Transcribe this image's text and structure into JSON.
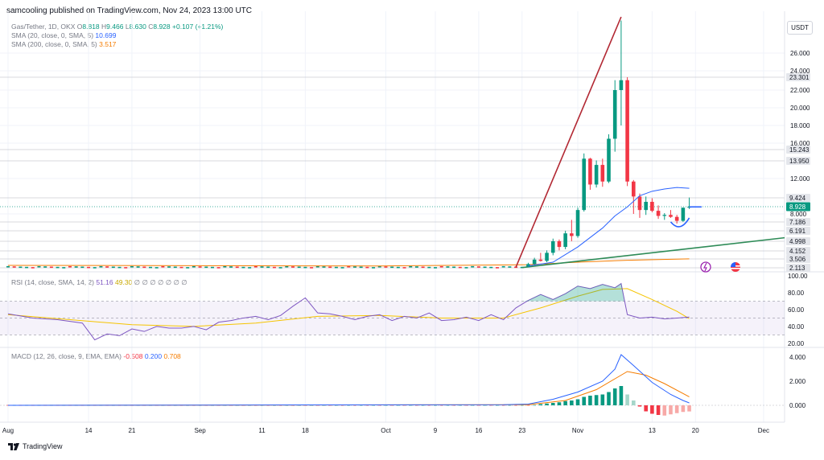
{
  "header": {
    "published": "samcooling published on TradingView.com, Nov 24, 2023 13:00 UTC"
  },
  "legend": {
    "symbol": "Gas/Tether, 1D, OKX",
    "o_label": "O",
    "o": "8.818",
    "h_label": "H",
    "h": "9.466",
    "l_label": "L",
    "l": "8.630",
    "c_label": "C",
    "c": "8.928",
    "change": "+0.107 (+1.21%)",
    "sma20_label": "SMA (20, close, 0, SMA, 5)",
    "sma20_value": "10.699",
    "sma200_label": "SMA (200, close, 0, SMA, 5)",
    "sma200_value": "3.517"
  },
  "rsi_legend": {
    "label": "RSI (14, close, SMA, 14, 2)",
    "v1": "51.16",
    "v2": "49.30",
    "zeros": "∅ ∅ ∅ ∅ ∅ ∅ ∅"
  },
  "macd_legend": {
    "label": "MACD (12, 26, close, 9, EMA, EMA)",
    "v1": "-0.508",
    "v2": "0.200",
    "v3": "0.708"
  },
  "currency": "USDT",
  "footer": {
    "brand": "TradingView"
  },
  "colors": {
    "up": "#089981",
    "down": "#f23645",
    "sma20": "#2962ff",
    "sma200": "#f57c00",
    "rsi": "#7e57c2",
    "rsi_ma": "#f5c400",
    "trend_red": "#b22833",
    "trend_green": "#2e8b57"
  },
  "chart_data": [
    {
      "type": "candlestick",
      "title": "Gas/Tether, 1D, OKX",
      "x_ticks": [
        {
          "label": "Aug",
          "day": 0
        },
        {
          "label": "14",
          "day": 13
        },
        {
          "label": "21",
          "day": 20
        },
        {
          "label": "Sep",
          "day": 31
        },
        {
          "label": "11",
          "day": 41
        },
        {
          "label": "18",
          "day": 48
        },
        {
          "label": "Oct",
          "day": 61
        },
        {
          "label": "9",
          "day": 69
        },
        {
          "label": "16",
          "day": 76
        },
        {
          "label": "23",
          "day": 83
        },
        {
          "label": "Nov",
          "day": 92
        },
        {
          "label": "13",
          "day": 104
        },
        {
          "label": "20",
          "day": 111
        },
        {
          "label": "Dec",
          "day": 122
        }
      ],
      "y_ticks": [
        "26.000",
        "24.000",
        "22.000",
        "20.000",
        "18.000",
        "16.000",
        "12.000",
        "8.000"
      ],
      "price_labels": [
        {
          "value": "23.301",
          "y": 23.301,
          "style": "line"
        },
        {
          "value": "15.243",
          "y": 15.243,
          "style": "line"
        },
        {
          "value": "13.950",
          "y": 13.95,
          "style": "line"
        },
        {
          "value": "9.424",
          "y": 9.424,
          "style": "line"
        },
        {
          "value": "8.928",
          "y": 8.928,
          "style": "current"
        },
        {
          "value": "7.186",
          "y": 7.186,
          "style": "line"
        },
        {
          "value": "6.191",
          "y": 6.191,
          "style": "line"
        },
        {
          "value": "4.998",
          "y": 4.998,
          "style": "line"
        },
        {
          "value": "4.152",
          "y": 4.152,
          "style": "line"
        },
        {
          "value": "3.506",
          "y": 3.506,
          "style": "line"
        },
        {
          "value": "2.113",
          "y": 2.113,
          "style": "line"
        }
      ],
      "ylim": [
        2.0,
        28.0
      ],
      "candles": [
        [
          84,
          2.3,
          2.9,
          2.2,
          2.7
        ],
        [
          85,
          2.7,
          3.6,
          2.6,
          3.4
        ],
        [
          86,
          3.4,
          4.0,
          3.1,
          3.2
        ],
        [
          87,
          3.2,
          4.2,
          3.0,
          4.0
        ],
        [
          88,
          4.0,
          5.3,
          3.8,
          5.0
        ],
        [
          89,
          5.0,
          5.2,
          4.2,
          4.5
        ],
        [
          90,
          4.5,
          6.2,
          4.3,
          5.9
        ],
        [
          91,
          5.9,
          7.4,
          5.0,
          5.6
        ],
        [
          92,
          5.6,
          8.8,
          5.4,
          8.5
        ],
        [
          93,
          8.5,
          14.8,
          8.3,
          14.2
        ],
        [
          94,
          14.2,
          14.3,
          10.5,
          11.2
        ],
        [
          95,
          11.2,
          14.0,
          10.8,
          13.5
        ],
        [
          96,
          13.5,
          14.2,
          10.9,
          11.6
        ],
        [
          97,
          11.6,
          17.0,
          11.4,
          16.5
        ],
        [
          98,
          16.5,
          23.0,
          15.0,
          22.0
        ],
        [
          99,
          22.0,
          27.8,
          18.0,
          23.0
        ],
        [
          100,
          23.0,
          23.3,
          11.0,
          11.6
        ],
        [
          101,
          11.6,
          11.8,
          8.0,
          9.6
        ],
        [
          102,
          9.6,
          10.0,
          7.6,
          8.5
        ],
        [
          103,
          8.5,
          9.6,
          7.9,
          9.2
        ],
        [
          104,
          9.2,
          9.4,
          8.2,
          8.4
        ],
        [
          105,
          8.4,
          9.0,
          7.5,
          7.8
        ],
        [
          106,
          7.8,
          8.1,
          7.4,
          7.9
        ],
        [
          107,
          7.9,
          8.5,
          7.6,
          7.7
        ],
        [
          108,
          7.7,
          7.9,
          7.0,
          7.3
        ],
        [
          109,
          7.3,
          8.8,
          7.2,
          8.8
        ],
        [
          110,
          8.818,
          9.466,
          8.63,
          8.928
        ]
      ],
      "flat_series_start": 0,
      "flat_series_end": 83,
      "flat_level": 2.2,
      "sma20": [
        [
          84,
          2.4
        ],
        [
          88,
          3.0
        ],
        [
          92,
          4.5
        ],
        [
          96,
          6.5
        ],
        [
          98,
          7.8
        ],
        [
          100,
          8.9
        ],
        [
          102,
          9.7
        ],
        [
          104,
          10.3
        ],
        [
          106,
          10.6
        ],
        [
          108,
          10.8
        ],
        [
          110,
          10.699
        ]
      ],
      "sma200": [
        [
          0,
          2.5
        ],
        [
          60,
          2.4
        ],
        [
          84,
          2.6
        ],
        [
          92,
          3.0
        ],
        [
          100,
          3.3
        ],
        [
          110,
          3.517
        ]
      ]
    },
    {
      "type": "line",
      "title": "RSI (14, close, SMA, 14, 2)",
      "y_ticks": [
        "100.00",
        "80.00",
        "60.00",
        "40.00",
        "20.00"
      ],
      "ylim": [
        15,
        105
      ],
      "bands": [
        30,
        70
      ],
      "rsi": [
        [
          0,
          55
        ],
        [
          4,
          50
        ],
        [
          8,
          48
        ],
        [
          12,
          44
        ],
        [
          14,
          24
        ],
        [
          16,
          31
        ],
        [
          18,
          29
        ],
        [
          20,
          37
        ],
        [
          22,
          34
        ],
        [
          24,
          40
        ],
        [
          26,
          38
        ],
        [
          28,
          38
        ],
        [
          30,
          40
        ],
        [
          32,
          36
        ],
        [
          34,
          45
        ],
        [
          36,
          47
        ],
        [
          38,
          50
        ],
        [
          40,
          52
        ],
        [
          42,
          48
        ],
        [
          44,
          53
        ],
        [
          46,
          64
        ],
        [
          48,
          74
        ],
        [
          50,
          56
        ],
        [
          52,
          55
        ],
        [
          54,
          52
        ],
        [
          56,
          48
        ],
        [
          58,
          52
        ],
        [
          60,
          54
        ],
        [
          62,
          47
        ],
        [
          64,
          52
        ],
        [
          66,
          50
        ],
        [
          68,
          56
        ],
        [
          70,
          47
        ],
        [
          72,
          48
        ],
        [
          74,
          51
        ],
        [
          76,
          47
        ],
        [
          78,
          54
        ],
        [
          80,
          48
        ],
        [
          82,
          62
        ],
        [
          84,
          71
        ],
        [
          86,
          78
        ],
        [
          88,
          72
        ],
        [
          90,
          79
        ],
        [
          92,
          88
        ],
        [
          94,
          85
        ],
        [
          96,
          90
        ],
        [
          98,
          86
        ],
        [
          99,
          91
        ],
        [
          100,
          54
        ],
        [
          102,
          50
        ],
        [
          104,
          51
        ],
        [
          106,
          49
        ],
        [
          108,
          50
        ],
        [
          110,
          51.16
        ]
      ],
      "rsi_ma": [
        [
          0,
          54
        ],
        [
          10,
          48
        ],
        [
          20,
          42
        ],
        [
          30,
          40
        ],
        [
          40,
          44
        ],
        [
          50,
          52
        ],
        [
          60,
          53
        ],
        [
          70,
          50
        ],
        [
          80,
          50
        ],
        [
          86,
          62
        ],
        [
          92,
          76
        ],
        [
          96,
          84
        ],
        [
          100,
          85
        ],
        [
          104,
          72
        ],
        [
          108,
          58
        ],
        [
          110,
          49.3
        ]
      ]
    },
    {
      "type": "bar",
      "title": "MACD (12, 26, close, 9, EMA, EMA)",
      "y_ticks": [
        "4.000",
        "2.000",
        "0.000"
      ],
      "ylim": [
        -1.0,
        4.6
      ],
      "macd": [
        [
          0,
          0.0
        ],
        [
          80,
          0.05
        ],
        [
          84,
          0.1
        ],
        [
          88,
          0.5
        ],
        [
          92,
          1.1
        ],
        [
          96,
          2.0
        ],
        [
          98,
          3.0
        ],
        [
          99,
          4.2
        ],
        [
          101,
          3.3
        ],
        [
          104,
          1.9
        ],
        [
          107,
          0.9
        ],
        [
          109,
          0.4
        ],
        [
          110,
          0.2
        ]
      ],
      "signal": [
        [
          0,
          0.0
        ],
        [
          84,
          0.05
        ],
        [
          90,
          0.4
        ],
        [
          95,
          1.3
        ],
        [
          98,
          2.2
        ],
        [
          100,
          2.8
        ],
        [
          103,
          2.5
        ],
        [
          106,
          1.8
        ],
        [
          110,
          0.708
        ]
      ],
      "hist": [
        [
          86,
          0.1
        ],
        [
          87,
          0.15
        ],
        [
          88,
          0.2
        ],
        [
          89,
          0.25
        ],
        [
          90,
          0.35
        ],
        [
          91,
          0.4
        ],
        [
          92,
          0.5
        ],
        [
          93,
          0.7
        ],
        [
          94,
          0.8
        ],
        [
          95,
          0.85
        ],
        [
          96,
          0.9
        ],
        [
          97,
          1.1
        ],
        [
          98,
          1.4
        ],
        [
          99,
          1.6
        ],
        [
          100,
          0.9
        ],
        [
          101,
          0.4
        ],
        [
          102,
          -0.1
        ],
        [
          103,
          -0.5
        ],
        [
          104,
          -0.7
        ],
        [
          105,
          -0.8
        ],
        [
          106,
          -0.85
        ],
        [
          107,
          -0.75
        ],
        [
          108,
          -0.65
        ],
        [
          109,
          -0.55
        ],
        [
          110,
          -0.508
        ]
      ]
    }
  ]
}
